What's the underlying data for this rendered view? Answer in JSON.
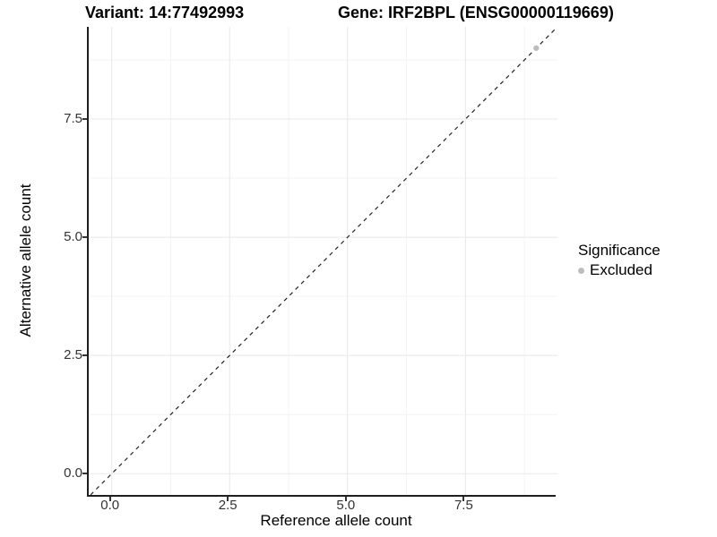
{
  "header": {
    "variant_title": "Variant: 14:77492993",
    "gene_title": "Gene: IRF2BPL (ENSG00000119669)"
  },
  "chart_data": {
    "type": "scatter",
    "xlabel": "Reference allele count",
    "ylabel": "Alternative allele count",
    "xlim": [
      -0.45,
      9.45
    ],
    "ylim": [
      -0.45,
      9.45
    ],
    "x_ticks": [
      0.0,
      2.5,
      5.0,
      7.5
    ],
    "x_tick_labels": [
      "0.0",
      "2.5",
      "5.0",
      "7.5"
    ],
    "y_ticks": [
      0.0,
      2.5,
      5.0,
      7.5
    ],
    "y_tick_labels": [
      "0.0",
      "2.5",
      "5.0",
      "7.5"
    ],
    "x_minor_ticks": [
      1.25,
      3.75,
      6.25,
      8.75
    ],
    "y_minor_ticks": [
      1.25,
      3.75,
      6.25,
      8.75
    ],
    "grid": true,
    "series": [
      {
        "name": "Excluded",
        "color": "#bdbdbd",
        "points": [
          {
            "x": 9,
            "y": 9
          }
        ]
      }
    ],
    "reference_line": {
      "type": "identity",
      "slope": 1,
      "intercept": 0,
      "style": "dashed",
      "color": "#222222"
    },
    "legend": {
      "title": "Significance",
      "position": "right",
      "entries": [
        {
          "label": "Excluded",
          "color": "#bdbdbd"
        }
      ]
    },
    "colors": {
      "grid_major": "#e8e8e8",
      "grid_minor": "#f3f3f3",
      "axis_line": "#1f1f1f",
      "tick_text": "#333333",
      "point": "#bdbdbd",
      "background": "#ffffff"
    }
  }
}
